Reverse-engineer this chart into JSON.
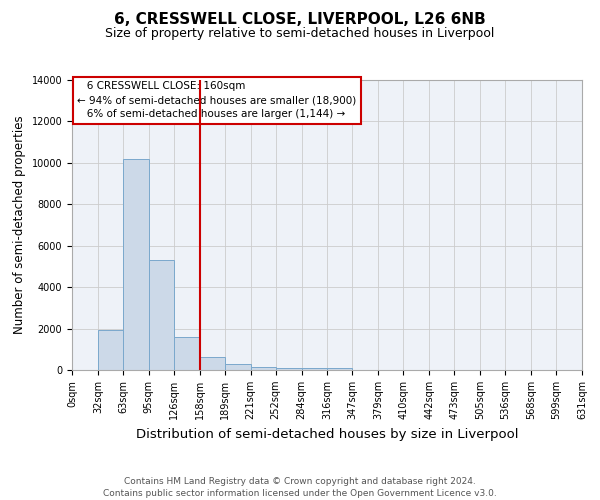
{
  "title": "6, CRESSWELL CLOSE, LIVERPOOL, L26 6NB",
  "subtitle": "Size of property relative to semi-detached houses in Liverpool",
  "xlabel": "Distribution of semi-detached houses by size in Liverpool",
  "ylabel": "Number of semi-detached properties",
  "annotation_line1": "   6 CRESSWELL CLOSE: 160sqm",
  "annotation_line2": "← 94% of semi-detached houses are smaller (18,900)",
  "annotation_line3": "   6% of semi-detached houses are larger (1,144) →",
  "footer_line1": "Contains HM Land Registry data © Crown copyright and database right 2024.",
  "footer_line2": "Contains public sector information licensed under the Open Government Licence v3.0.",
  "bar_edges": [
    0,
    32,
    63,
    95,
    126,
    158,
    189,
    221,
    252,
    284,
    316,
    347,
    379,
    410,
    442,
    473,
    505,
    536,
    568,
    599,
    631
  ],
  "bar_heights": [
    0,
    1950,
    10200,
    5300,
    1600,
    650,
    280,
    160,
    120,
    90,
    100,
    0,
    0,
    0,
    0,
    0,
    0,
    0,
    0,
    0
  ],
  "bar_color": "#ccd9e8",
  "bar_edge_color": "#7aa8cc",
  "property_line_x": 158,
  "property_line_color": "#cc0000",
  "ylim": [
    0,
    14000
  ],
  "yticks": [
    0,
    2000,
    4000,
    6000,
    8000,
    10000,
    12000,
    14000
  ],
  "grid_color": "#cccccc",
  "background_color": "#eef2f8",
  "box_color": "#cc0000",
  "title_fontsize": 11,
  "subtitle_fontsize": 9,
  "xlabel_fontsize": 9.5,
  "ylabel_fontsize": 8.5,
  "tick_fontsize": 7,
  "annotation_fontsize": 7.5,
  "footer_fontsize": 6.5
}
